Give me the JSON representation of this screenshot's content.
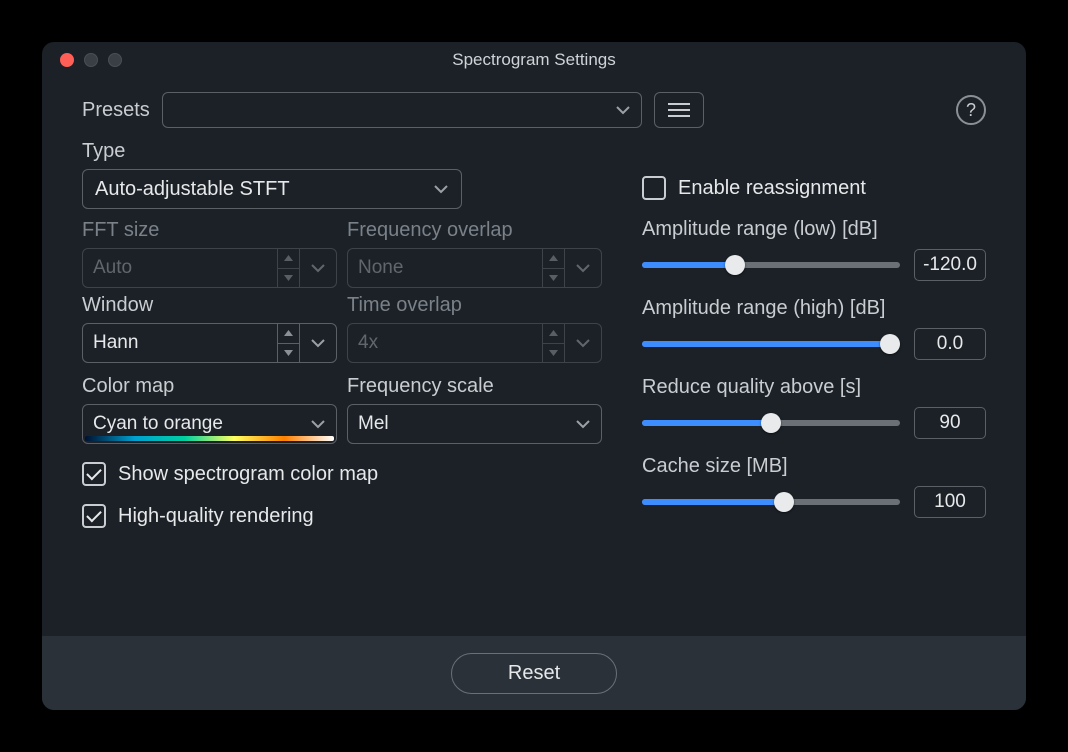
{
  "window": {
    "title": "Spectrogram Settings"
  },
  "presets": {
    "label": "Presets",
    "value": ""
  },
  "type": {
    "label": "Type",
    "value": "Auto-adjustable STFT"
  },
  "fft_size": {
    "label": "FFT size",
    "value": "Auto",
    "enabled": false
  },
  "freq_overlap": {
    "label": "Frequency overlap",
    "value": "None",
    "enabled": false
  },
  "window_fn": {
    "label": "Window",
    "value": "Hann",
    "enabled": true
  },
  "time_overlap": {
    "label": "Time overlap",
    "value": "4x",
    "enabled": false
  },
  "color_map": {
    "label": "Color map",
    "value": "Cyan to orange"
  },
  "freq_scale": {
    "label": "Frequency scale",
    "value": "Mel"
  },
  "show_colormap": {
    "label": "Show spectrogram color map",
    "checked": true
  },
  "hq_rendering": {
    "label": "High-quality rendering",
    "checked": true
  },
  "enable_reassignment": {
    "label": "Enable reassignment",
    "checked": false
  },
  "amp_low": {
    "label": "Amplitude range (low)  [dB]",
    "value": "-120.0",
    "fill_pct": 36
  },
  "amp_high": {
    "label": "Amplitude range (high)  [dB]",
    "value": "0.0",
    "fill_pct": 96
  },
  "reduce_quality": {
    "label": "Reduce quality above [s]",
    "value": "90",
    "fill_pct": 50
  },
  "cache_size": {
    "label": "Cache size [MB]",
    "value": "100",
    "fill_pct": 55
  },
  "footer": {
    "reset": "Reset"
  },
  "colors": {
    "accent": "#3d8dff",
    "bg": "#1b2127",
    "footer_bg": "#2a3138",
    "border": "#5a6066",
    "text": "#c9cdd1",
    "text_bright": "#e6e8ea",
    "text_dim": "#7a8189"
  }
}
